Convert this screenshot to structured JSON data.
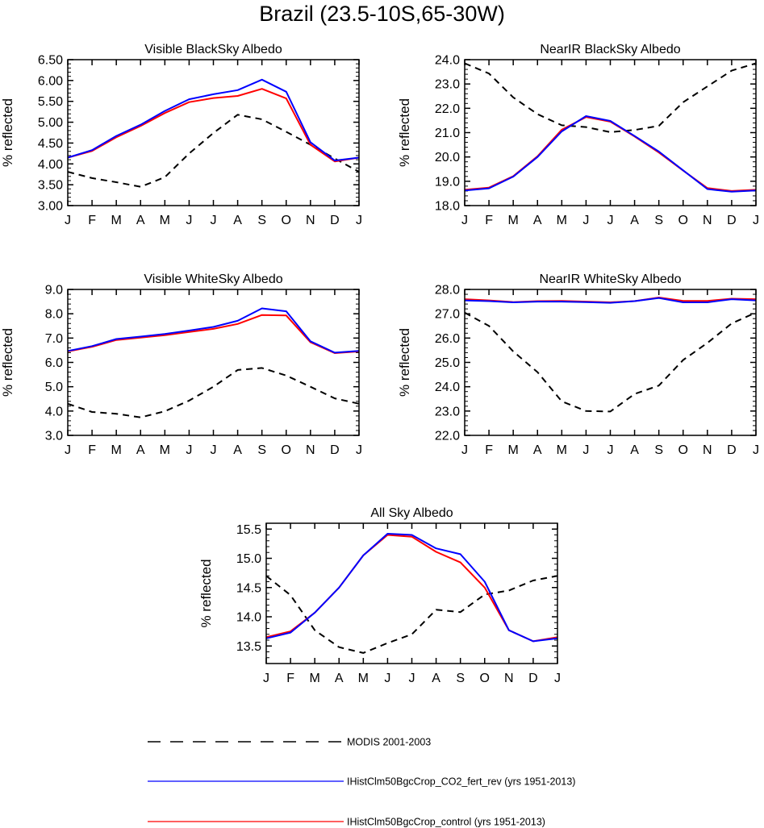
{
  "page": {
    "title": "Brazil (23.5-10S,65-30W)"
  },
  "colors": {
    "modis": "#000000",
    "co2_fert_rev": "#0000ff",
    "control": "#ff0000"
  },
  "legend": {
    "items": [
      {
        "label": "MODIS 2001-2003",
        "style": "dashed",
        "color": "#000000"
      },
      {
        "label": "IHistClm50BgcCrop_CO2_fert_rev (yrs 1951-2013)",
        "style": "solid",
        "color": "#0000ff"
      },
      {
        "label": "IHistClm50BgcCrop_control (yrs 1951-2013)",
        "style": "solid",
        "color": "#ff0000"
      }
    ]
  },
  "chart_data": [
    {
      "type": "line",
      "title": "Visible BlackSky Albedo",
      "xlabel": "",
      "ylabel": "% reflected",
      "categories": [
        "J",
        "F",
        "M",
        "A",
        "M",
        "J",
        "J",
        "A",
        "S",
        "O",
        "N",
        "D",
        "J"
      ],
      "ylim": [
        3.0,
        6.5
      ],
      "yticks": [
        "3.00",
        "3.50",
        "4.00",
        "4.50",
        "5.00",
        "5.50",
        "6.00",
        "6.50"
      ],
      "series": [
        {
          "name": "MODIS 2001-2003",
          "values": [
            3.81,
            3.66,
            3.56,
            3.45,
            3.68,
            4.25,
            4.74,
            5.18,
            5.07,
            4.77,
            4.46,
            4.13,
            3.81
          ]
        },
        {
          "name": "IHistClm50BgcCrop_CO2_fert_rev (yrs 1951-2013)",
          "values": [
            4.15,
            4.33,
            4.67,
            4.94,
            5.27,
            5.55,
            5.67,
            5.77,
            6.02,
            5.73,
            4.52,
            4.08,
            4.15
          ]
        },
        {
          "name": "IHistClm50BgcCrop_control (yrs 1951-2013)",
          "values": [
            4.15,
            4.31,
            4.64,
            4.91,
            5.22,
            5.48,
            5.58,
            5.63,
            5.8,
            5.57,
            4.46,
            4.06,
            4.15
          ]
        }
      ]
    },
    {
      "type": "line",
      "title": "NearIR BlackSky Albedo",
      "xlabel": "",
      "ylabel": "% reflected",
      "categories": [
        "J",
        "F",
        "M",
        "A",
        "M",
        "J",
        "J",
        "A",
        "S",
        "O",
        "N",
        "D",
        "J"
      ],
      "ylim": [
        18.0,
        24.0
      ],
      "yticks": [
        "18.0",
        "19.0",
        "20.0",
        "21.0",
        "22.0",
        "23.0",
        "24.0"
      ],
      "series": [
        {
          "name": "MODIS 2001-2003",
          "values": [
            23.85,
            23.43,
            22.45,
            21.76,
            21.3,
            21.23,
            21.02,
            21.11,
            21.28,
            22.25,
            22.9,
            23.55,
            23.85
          ]
        },
        {
          "name": "IHistClm50BgcCrop_CO2_fert_rev (yrs 1951-2013)",
          "values": [
            18.62,
            18.71,
            19.19,
            20.0,
            21.05,
            21.68,
            21.48,
            20.86,
            20.22,
            19.45,
            18.68,
            18.57,
            18.62
          ]
        },
        {
          "name": "IHistClm50BgcCrop_control (yrs 1951-2013)",
          "values": [
            18.65,
            18.74,
            19.21,
            20.03,
            21.12,
            21.64,
            21.45,
            20.84,
            20.18,
            19.44,
            18.72,
            18.6,
            18.65
          ]
        }
      ]
    },
    {
      "type": "line",
      "title": "Visible WhiteSky Albedo",
      "xlabel": "",
      "ylabel": "% reflected",
      "categories": [
        "J",
        "F",
        "M",
        "A",
        "M",
        "J",
        "J",
        "A",
        "S",
        "O",
        "N",
        "D",
        "J"
      ],
      "ylim": [
        3.0,
        9.0
      ],
      "yticks": [
        "3.0",
        "4.0",
        "5.0",
        "6.0",
        "7.0",
        "8.0",
        "9.0"
      ],
      "series": [
        {
          "name": "MODIS 2001-2003",
          "values": [
            4.3,
            3.96,
            3.89,
            3.74,
            3.99,
            4.43,
            5.0,
            5.69,
            5.77,
            5.46,
            5.0,
            4.52,
            4.3
          ]
        },
        {
          "name": "IHistClm50BgcCrop_CO2_fert_rev (yrs 1951-2013)",
          "values": [
            6.47,
            6.67,
            6.96,
            7.06,
            7.17,
            7.31,
            7.46,
            7.71,
            8.22,
            8.1,
            6.87,
            6.4,
            6.47
          ]
        },
        {
          "name": "IHistClm50BgcCrop_control (yrs 1951-2013)",
          "values": [
            6.45,
            6.64,
            6.92,
            7.02,
            7.12,
            7.25,
            7.38,
            7.58,
            7.95,
            7.93,
            6.83,
            6.38,
            6.45
          ]
        }
      ]
    },
    {
      "type": "line",
      "title": "NearIR WhiteSky Albedo",
      "xlabel": "",
      "ylabel": "% reflected",
      "categories": [
        "J",
        "F",
        "M",
        "A",
        "M",
        "J",
        "J",
        "A",
        "S",
        "O",
        "N",
        "D",
        "J"
      ],
      "ylim": [
        22.0,
        28.0
      ],
      "yticks": [
        "22.0",
        "23.0",
        "24.0",
        "25.0",
        "26.0",
        "27.0",
        "28.0"
      ],
      "series": [
        {
          "name": "MODIS 2001-2003",
          "values": [
            27.05,
            26.5,
            25.45,
            24.6,
            23.4,
            23.0,
            22.98,
            23.7,
            24.05,
            25.1,
            25.8,
            26.6,
            27.05
          ]
        },
        {
          "name": "IHistClm50BgcCrop_CO2_fert_rev (yrs 1951-2013)",
          "values": [
            27.55,
            27.52,
            27.47,
            27.5,
            27.5,
            27.48,
            27.45,
            27.52,
            27.65,
            27.47,
            27.47,
            27.6,
            27.55
          ]
        },
        {
          "name": "IHistClm50BgcCrop_control (yrs 1951-2013)",
          "values": [
            27.6,
            27.55,
            27.48,
            27.52,
            27.53,
            27.5,
            27.47,
            27.52,
            27.67,
            27.53,
            27.53,
            27.62,
            27.6
          ]
        }
      ]
    },
    {
      "type": "line",
      "title": "All Sky Albedo",
      "xlabel": "",
      "ylabel": "% reflected",
      "categories": [
        "J",
        "F",
        "M",
        "A",
        "M",
        "J",
        "J",
        "A",
        "S",
        "O",
        "N",
        "D",
        "J"
      ],
      "ylim": [
        13.2,
        15.6
      ],
      "yticks": [
        "13.5",
        "14.0",
        "14.5",
        "15.0",
        "15.5"
      ],
      "ytick_values": [
        13.5,
        14.0,
        14.5,
        15.0,
        15.5
      ],
      "series": [
        {
          "name": "MODIS 2001-2003",
          "values": [
            14.7,
            14.37,
            13.77,
            13.48,
            13.38,
            13.55,
            13.7,
            14.12,
            14.08,
            14.38,
            14.45,
            14.62,
            14.7
          ]
        },
        {
          "name": "IHistClm50BgcCrop_CO2_fert_rev (yrs 1951-2013)",
          "values": [
            13.63,
            13.73,
            14.07,
            14.5,
            15.05,
            15.42,
            15.4,
            15.17,
            15.07,
            14.6,
            13.77,
            13.58,
            13.63
          ]
        },
        {
          "name": "IHistClm50BgcCrop_control (yrs 1951-2013)",
          "values": [
            13.65,
            13.75,
            14.07,
            14.5,
            15.05,
            15.4,
            15.37,
            15.11,
            14.93,
            14.5,
            13.77,
            13.58,
            13.65
          ]
        }
      ]
    }
  ]
}
